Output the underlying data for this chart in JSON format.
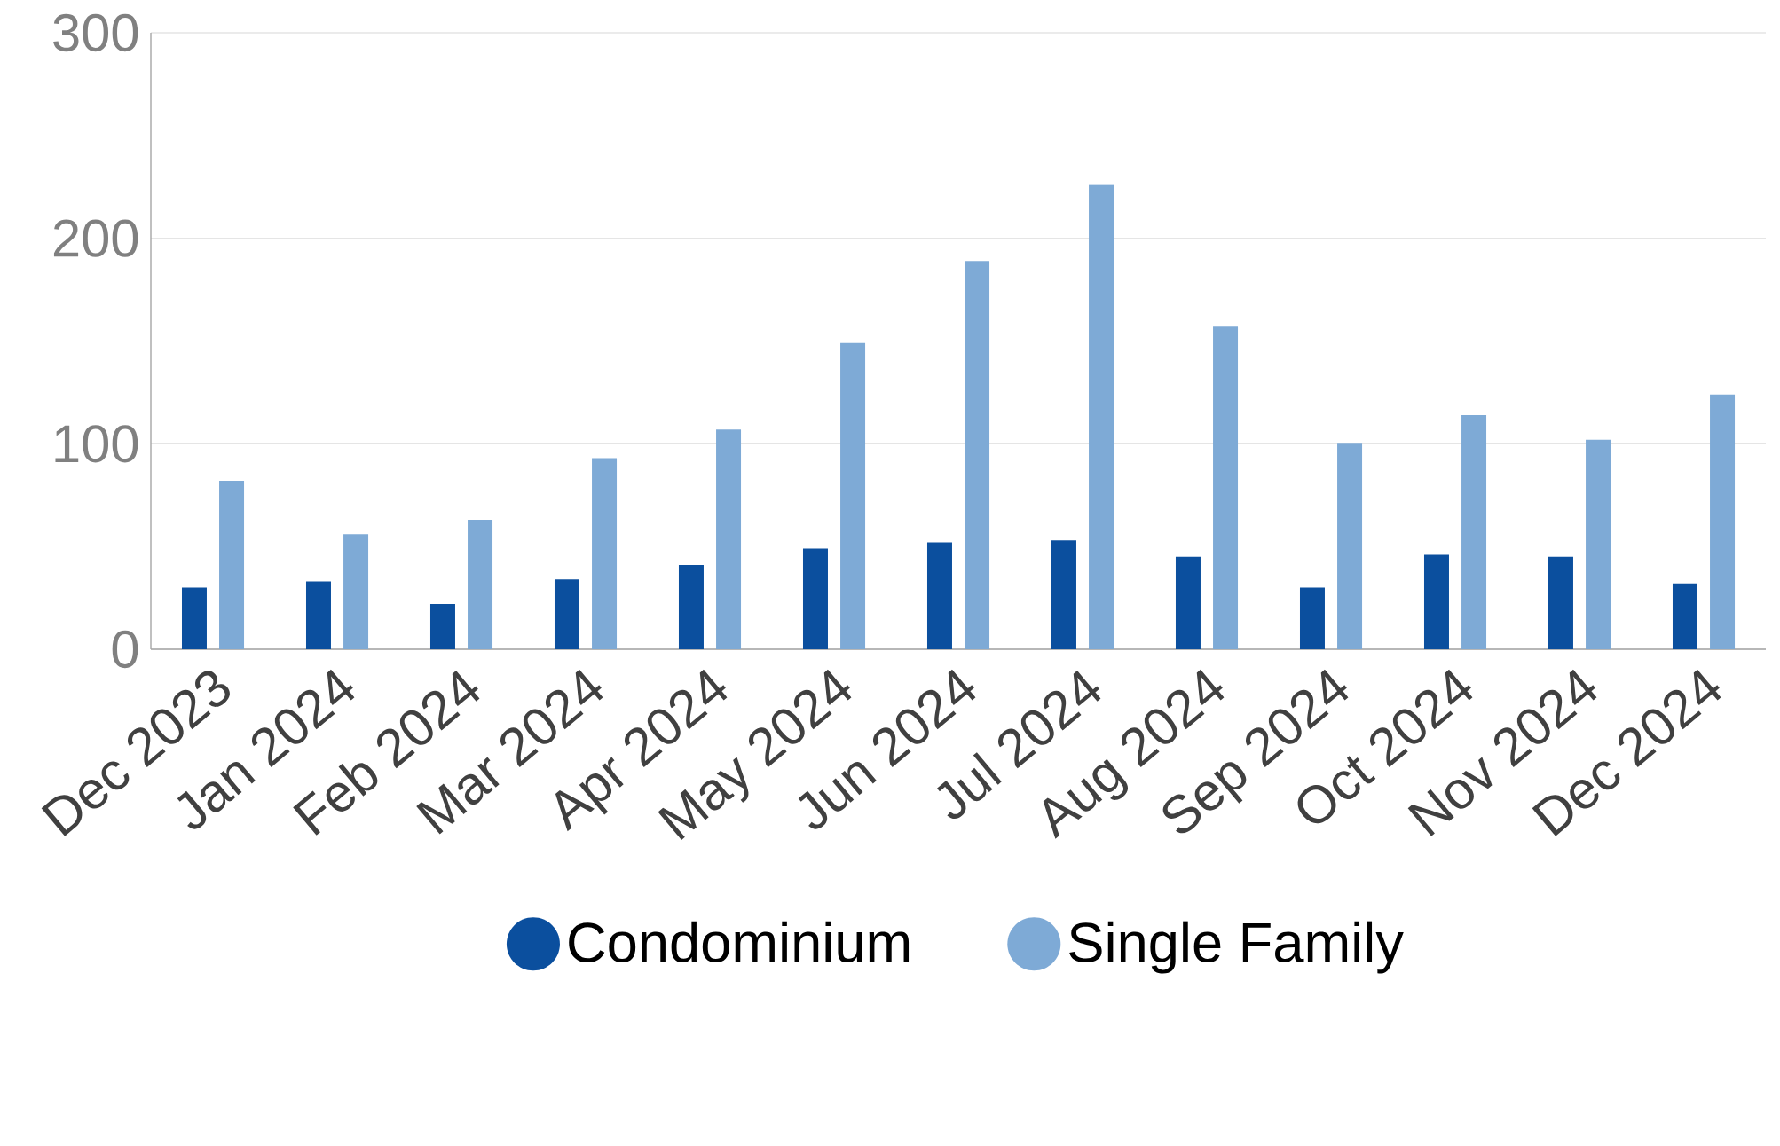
{
  "chart_data": {
    "type": "bar",
    "categories": [
      "Dec 2023",
      "Jan 2024",
      "Feb 2024",
      "Mar 2024",
      "Apr 2024",
      "May 2024",
      "Jun 2024",
      "Jul 2024",
      "Aug 2024",
      "Sep 2024",
      "Oct 2024",
      "Nov 2024",
      "Dec 2024"
    ],
    "series": [
      {
        "name": "Condominium",
        "color": "#0b4f9e",
        "values": [
          30,
          33,
          22,
          34,
          41,
          49,
          52,
          53,
          45,
          30,
          46,
          45,
          32
        ]
      },
      {
        "name": "Single Family",
        "color": "#7eaad6",
        "values": [
          82,
          56,
          63,
          93,
          107,
          149,
          189,
          226,
          157,
          100,
          114,
          102,
          124
        ]
      }
    ],
    "ylim": [
      0,
      300
    ],
    "yticks": [
      0,
      100,
      200,
      300
    ],
    "grid": "y",
    "legend": "bottom"
  }
}
